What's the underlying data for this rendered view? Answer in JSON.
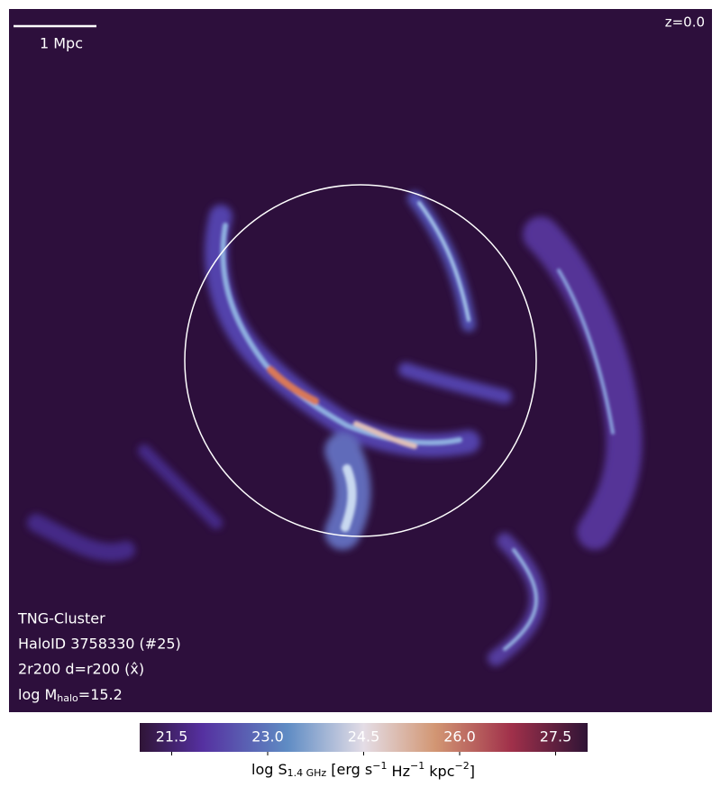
{
  "panel": {
    "scale_bar": "1 Mpc",
    "redshift": "z=0.0",
    "info": [
      "TNG-Cluster",
      "HaloID 3758330 (#25)",
      "2r200 d=r200 (x̂)"
    ],
    "mass": {
      "prefix": "log M",
      "sub": "halo",
      "suffix": "=15.2"
    }
  },
  "colorbar": {
    "lim": [
      21.0,
      28.0
    ],
    "ticks": [
      21.5,
      {
        "value": 23,
        "label": "23.0"
      },
      24.5,
      {
        "value": 26,
        "label": "26.0"
      },
      27.5
    ],
    "label": [
      "log S",
      "1.4 GHz",
      " [erg s",
      "−1",
      " Hz",
      "−1",
      " kpc",
      "−2",
      "]"
    ]
  }
}
